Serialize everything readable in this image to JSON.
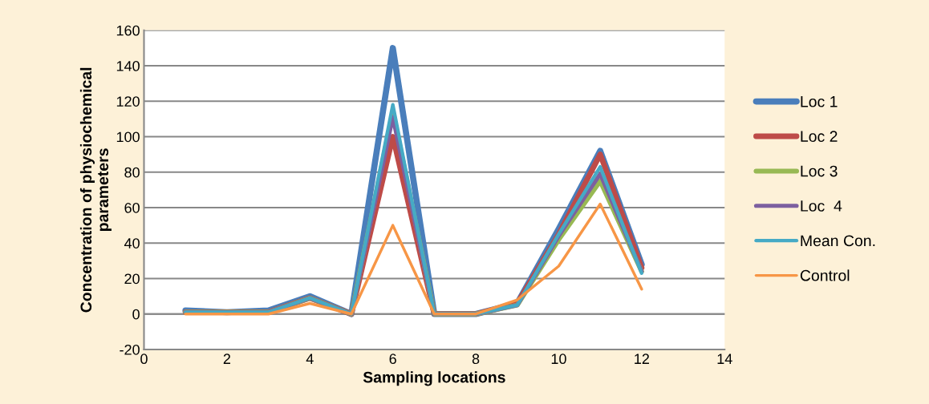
{
  "chart_data": {
    "type": "line",
    "xlabel": "Sampling locations",
    "ylabel": "Concentration of physiochemical\nparameters",
    "x": [
      1,
      2,
      3,
      4,
      5,
      6,
      7,
      8,
      9,
      10,
      11,
      12
    ],
    "series": [
      {
        "name": "Loc 1",
        "color": "#4a7ebb",
        "values": [
          2,
          1,
          2,
          10,
          0,
          150,
          0,
          0,
          6,
          48,
          92,
          28
        ]
      },
      {
        "name": "Loc 2",
        "color": "#be4b48",
        "values": [
          1,
          1,
          1,
          9,
          0,
          100,
          0,
          0,
          6,
          45,
          90,
          26
        ]
      },
      {
        "name": "Loc 3",
        "color": "#98b954",
        "values": [
          1,
          1,
          1,
          9,
          0,
          114,
          0,
          0,
          5,
          42,
          75,
          24
        ]
      },
      {
        "name": "Loc  4",
        "color": "#7d60a0",
        "values": [
          1,
          1,
          1,
          9,
          0,
          111,
          0,
          0,
          5,
          44,
          79,
          24
        ]
      },
      {
        "name": "Mean Con.",
        "color": "#46aac5",
        "values": [
          1,
          1,
          1,
          9,
          0,
          118,
          0,
          0,
          5,
          45,
          83,
          23
        ]
      },
      {
        "name": "Control",
        "color": "#f79646",
        "values": [
          0,
          0,
          0,
          6,
          0,
          50,
          0,
          0,
          8,
          27,
          62,
          14
        ]
      }
    ],
    "xlim": [
      0,
      14
    ],
    "xticks": [
      0,
      2,
      4,
      6,
      8,
      10,
      12,
      14
    ],
    "ylim": [
      -20,
      160
    ],
    "yticks": [
      -20,
      0,
      20,
      40,
      60,
      80,
      100,
      120,
      140,
      160
    ],
    "grid": "y",
    "legend": "right",
    "marker": "none",
    "line_style": "solid"
  }
}
